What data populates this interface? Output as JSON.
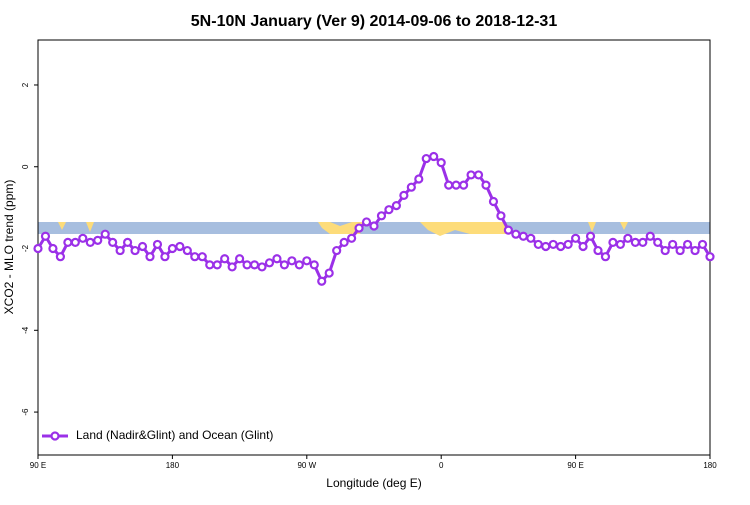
{
  "chart_data": {
    "type": "line",
    "title": "5N-10N January (Ver 9)   2014-09-06 to 2018-12-31",
    "x_label": "Longitude (deg E)",
    "y_label": "XCO2 - MLO trend (ppm)",
    "xlim": [
      90,
      540
    ],
    "xticks": [
      {
        "value": 90,
        "label": "90 E"
      },
      {
        "value": 180,
        "label": "180"
      },
      {
        "value": 270,
        "label": "90 W"
      },
      {
        "value": 360,
        "label": "0"
      },
      {
        "value": 450,
        "label": "90 E"
      },
      {
        "value": 540,
        "label": "180"
      }
    ],
    "ylim": [
      -7.05,
      3.1
    ],
    "yticks": [
      -6,
      -4,
      -2,
      0,
      2
    ],
    "legend_position": "bottom-left",
    "x": [
      90,
      95,
      100,
      105,
      110,
      115,
      120,
      125,
      130,
      135,
      140,
      145,
      150,
      155,
      160,
      165,
      170,
      175,
      180,
      185,
      190,
      195,
      200,
      205,
      210,
      215,
      220,
      225,
      230,
      235,
      240,
      245,
      250,
      255,
      260,
      265,
      270,
      275,
      280,
      285,
      290,
      295,
      300,
      305,
      310,
      315,
      320,
      325,
      330,
      335,
      340,
      345,
      350,
      355,
      360,
      365,
      370,
      375,
      380,
      385,
      390,
      395,
      400,
      405,
      410,
      415,
      420,
      425,
      430,
      435,
      440,
      445,
      450,
      455,
      460,
      465,
      470,
      475,
      480,
      485,
      490,
      495,
      500,
      505,
      510,
      515,
      520,
      525,
      530,
      535,
      540
    ],
    "series": [
      {
        "name": "Land (Nadir&Glint) and Ocean (Glint)",
        "color": "#9b30e8",
        "values": [
          -2.0,
          -1.7,
          -2.0,
          -2.2,
          -1.85,
          -1.85,
          -1.75,
          -1.85,
          -1.8,
          -1.65,
          -1.85,
          -2.05,
          -1.85,
          -2.05,
          -1.95,
          -2.2,
          -1.9,
          -2.2,
          -2.0,
          -1.95,
          -2.05,
          -2.2,
          -2.2,
          -2.4,
          -2.4,
          -2.25,
          -2.45,
          -2.25,
          -2.4,
          -2.4,
          -2.45,
          -2.35,
          -2.25,
          -2.4,
          -2.3,
          -2.4,
          -2.3,
          -2.4,
          -2.8,
          -2.6,
          -2.05,
          -1.85,
          -1.75,
          -1.5,
          -1.35,
          -1.45,
          -1.2,
          -1.05,
          -0.95,
          -0.7,
          -0.5,
          -0.3,
          0.2,
          0.25,
          0.1,
          -0.45,
          -0.45,
          -0.45,
          -0.2,
          -0.2,
          -0.45,
          -0.85,
          -1.2,
          -1.55,
          -1.65,
          -1.7,
          -1.75,
          -1.9,
          -1.95,
          -1.9,
          -1.95,
          -1.9,
          -1.75,
          -1.95,
          -1.7,
          -2.05,
          -2.2,
          -1.85,
          -1.9,
          -1.75,
          -1.85,
          -1.85,
          -1.7,
          -1.85,
          -2.05,
          -1.9,
          -2.05,
          -1.9,
          -2.05,
          -1.9,
          -2.2
        ]
      }
    ]
  }
}
